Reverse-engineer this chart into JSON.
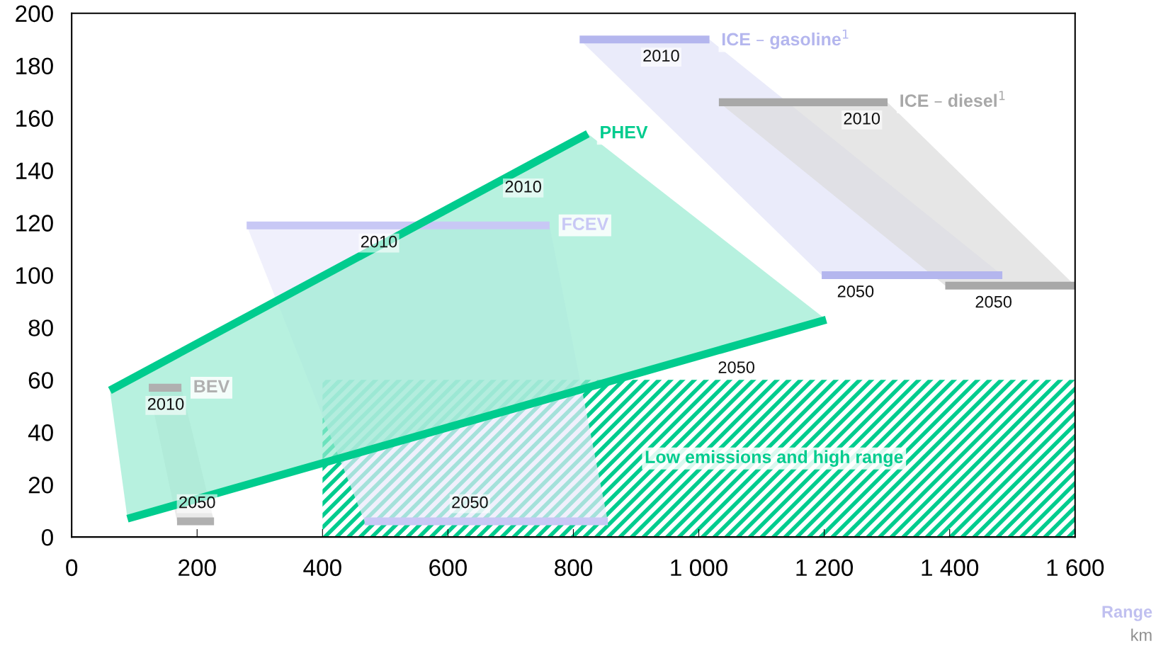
{
  "chart_data": {
    "type": "line",
    "xlabel": "Range",
    "xlim": [
      0,
      1600
    ],
    "ylim": [
      0,
      200
    ],
    "xticks": [
      0,
      200,
      400,
      600,
      800,
      {
        "value": 1000,
        "label": "1 000"
      },
      {
        "value": 1200,
        "label": "1 200"
      },
      {
        "value": 1400,
        "label": "1 400"
      },
      {
        "value": 1600,
        "label": "1 600"
      }
    ],
    "yticks": [
      0,
      20,
      40,
      60,
      80,
      100,
      120,
      140,
      160,
      180,
      200
    ],
    "grid": false,
    "legend": false,
    "marker": "none",
    "series": [
      {
        "type": "area",
        "name": "Low emissions and high range",
        "color": "#00cc8e",
        "x": [
          400,
          1600
        ],
        "values": [
          60,
          60
        ]
      },
      {
        "name": "FCEV",
        "color": "#c8c8f5",
        "x": [
          279,
          762,
          467,
          855
        ],
        "values": [
          119,
          119,
          6,
          6
        ]
      },
      {
        "name": "BEV",
        "color": "#b0b0b0",
        "x": [
          123,
          175,
          168,
          227
        ],
        "values": [
          57,
          57,
          6,
          6
        ]
      },
      {
        "name": "PHEV",
        "color": "#00cc8e",
        "x": [
          61,
          823,
          89,
          1203
        ],
        "values": [
          56,
          154,
          7,
          83
        ]
      },
      {
        "name": "ICE – gasoline$^{1}$",
        "color": "#b4b6ee",
        "x": [
          810,
          1017,
          1196,
          1484
        ],
        "values": [
          190,
          190,
          100,
          100
        ]
      },
      {
        "name": "ICE – diesel$^{1}$",
        "color": "#a8a8a8",
        "x": [
          1032,
          1301,
          1393,
          1600
        ],
        "values": [
          166,
          166,
          96,
          96
        ]
      }
    ],
    "annotations": [
      {
        "text": "2010",
        "x": 940,
        "y": 190
      },
      {
        "text": "2050",
        "x": 1250,
        "y": 100
      },
      {
        "text": "2010",
        "x": 1260,
        "y": 166
      },
      {
        "text": "2050",
        "x": 1470,
        "y": 96
      },
      {
        "text": "2010",
        "x": 720,
        "y": 140
      },
      {
        "text": "2050",
        "x": 1060,
        "y": 71
      },
      {
        "text": "2010",
        "x": 490,
        "y": 119
      },
      {
        "text": "2050",
        "x": 635,
        "y": 6
      },
      {
        "text": "2010",
        "x": 150,
        "y": 57
      },
      {
        "text": "2050",
        "x": 200,
        "y": 6
      },
      "km"
    ]
  }
}
